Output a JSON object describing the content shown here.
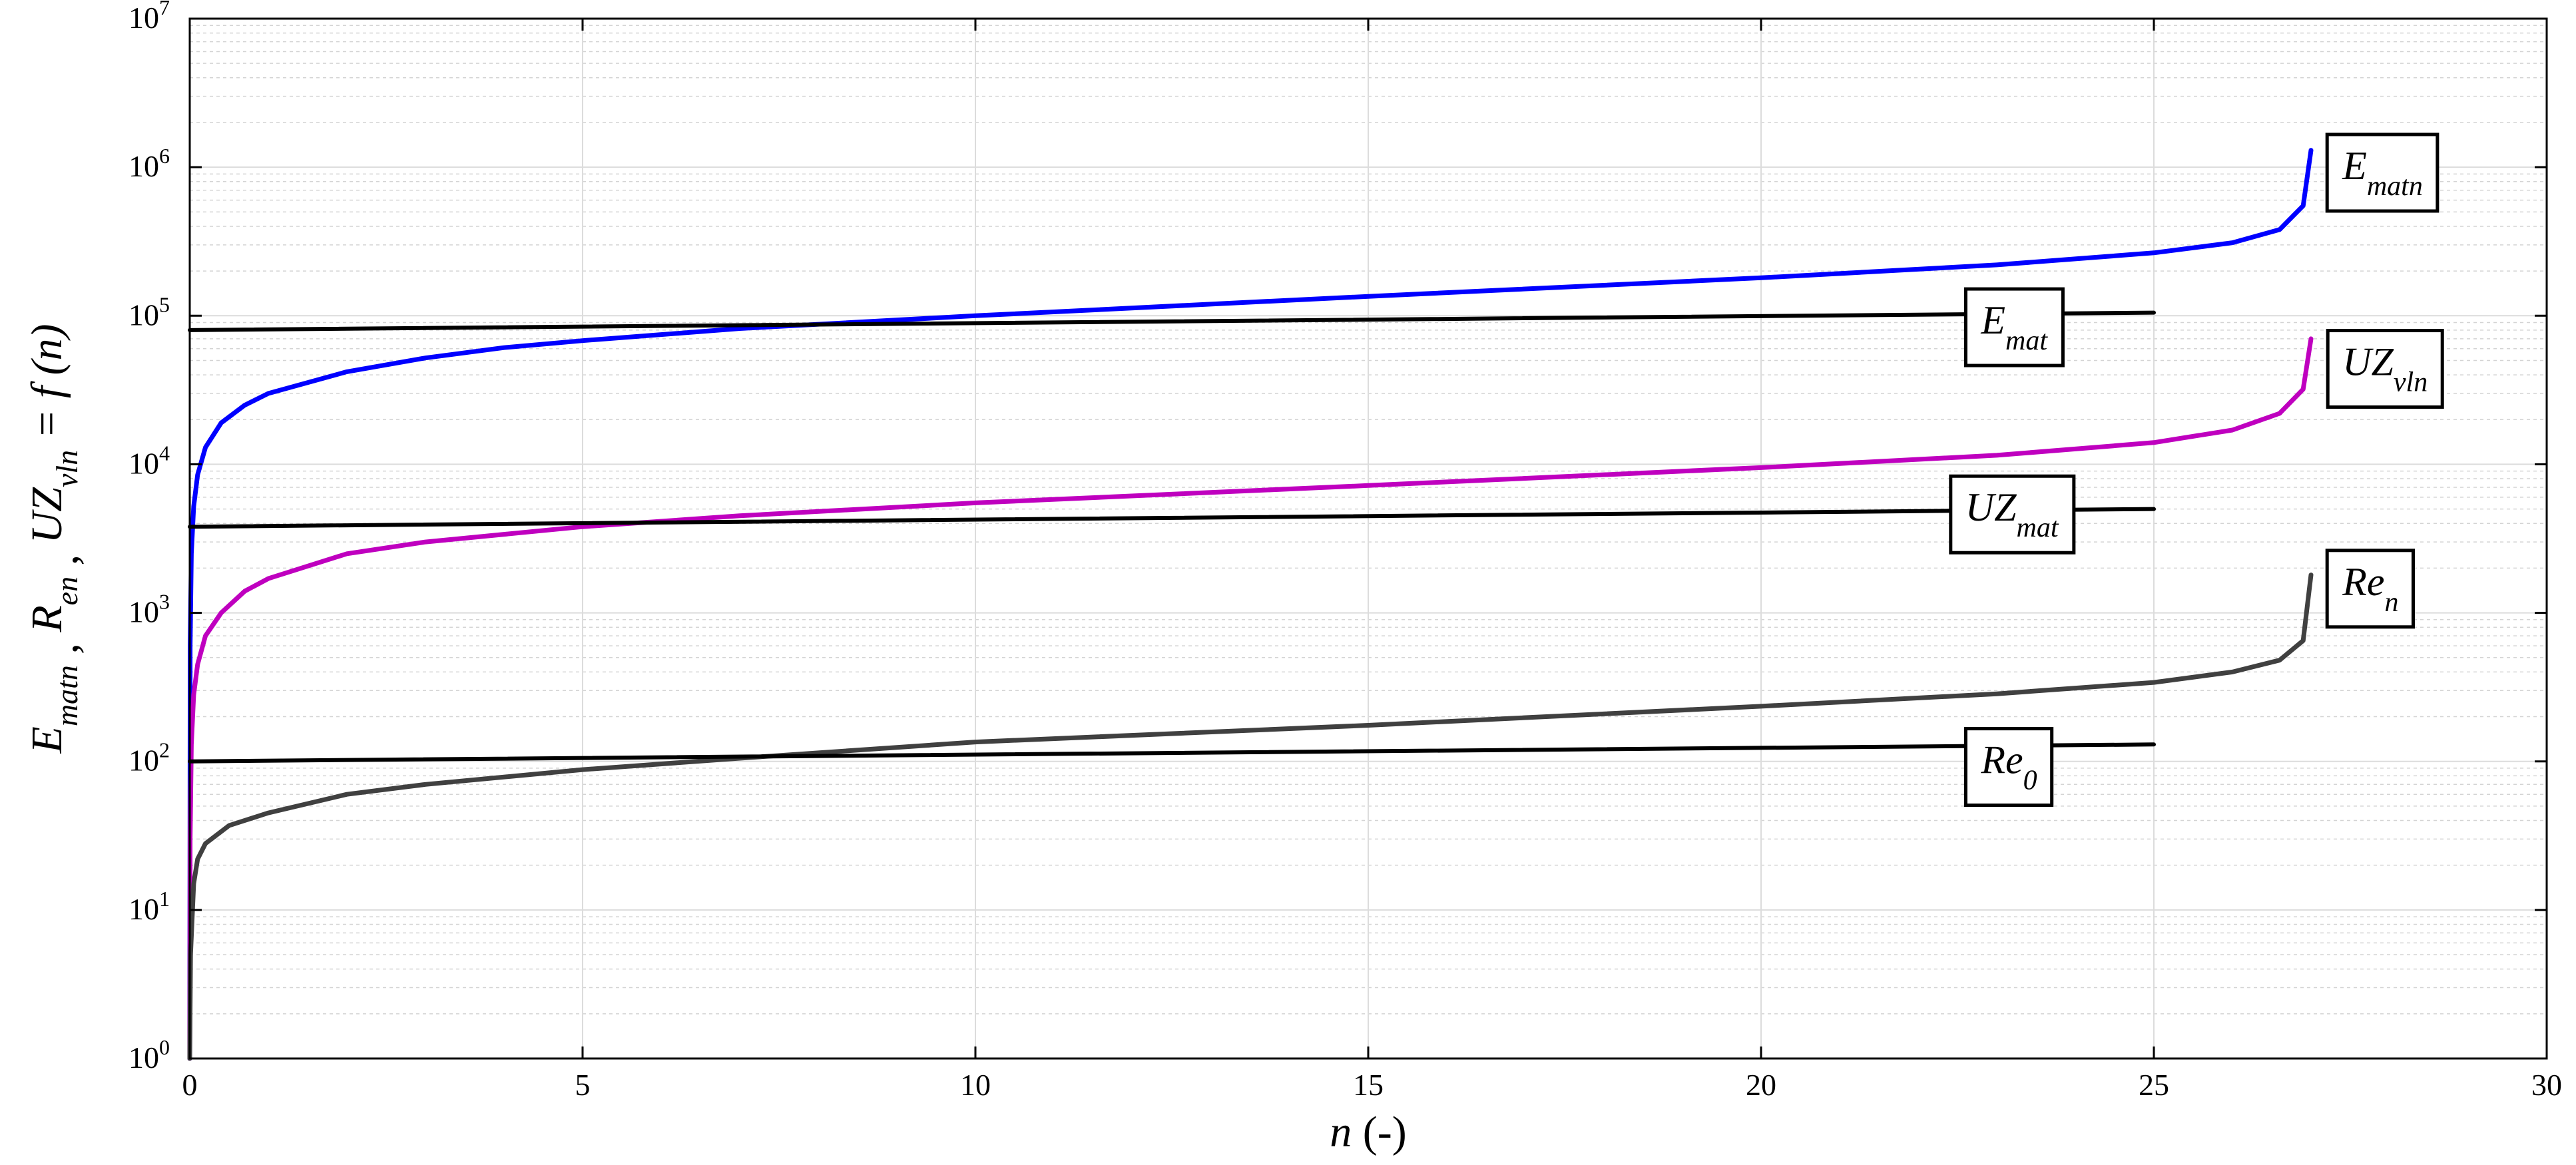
{
  "chart_data": {
    "type": "line",
    "xlabel": {
      "var": "n",
      "unit": "(-)"
    },
    "ylabel": {
      "parts": [
        {
          "base": "E",
          "sub": "matn"
        },
        {
          "base": "R",
          "sub": "en"
        },
        {
          "base": "UZ",
          "sub": "vln"
        }
      ],
      "suffix": "= f (n)"
    },
    "xlim": [
      0,
      30
    ],
    "xticks": [
      0,
      5,
      10,
      15,
      20,
      25,
      30
    ],
    "ylim": [
      1,
      10000000
    ],
    "yscale": "log",
    "yticks": [
      {
        "base": "10",
        "exp": "0"
      },
      {
        "base": "10",
        "exp": "1"
      },
      {
        "base": "10",
        "exp": "2"
      },
      {
        "base": "10",
        "exp": "3"
      },
      {
        "base": "10",
        "exp": "4"
      },
      {
        "base": "10",
        "exp": "5"
      },
      {
        "base": "10",
        "exp": "6"
      },
      {
        "base": "10",
        "exp": "7"
      }
    ],
    "grid": true,
    "minor_grid": true,
    "series": [
      {
        "label": {
          "base": "E",
          "sub": "matn"
        },
        "color": "#0000ff",
        "kind": "curve",
        "points": [
          [
            0,
            1
          ],
          [
            0.005,
            600
          ],
          [
            0.02,
            2500
          ],
          [
            0.05,
            5200
          ],
          [
            0.1,
            8500
          ],
          [
            0.2,
            13000
          ],
          [
            0.4,
            19000
          ],
          [
            0.7,
            25000
          ],
          [
            1,
            30000
          ],
          [
            2,
            42000
          ],
          [
            3,
            52000
          ],
          [
            4,
            61000
          ],
          [
            5,
            68000
          ],
          [
            7,
            82000
          ],
          [
            10,
            100000
          ],
          [
            15,
            135000
          ],
          [
            20,
            180000
          ],
          [
            23,
            220000
          ],
          [
            25,
            265000
          ],
          [
            26,
            310000
          ],
          [
            26.6,
            380000
          ],
          [
            26.9,
            550000
          ],
          [
            27,
            1300000
          ]
        ]
      },
      {
        "label": {
          "base": "E",
          "sub": "mat"
        },
        "color": "#000000",
        "kind": "line",
        "points": [
          [
            0,
            80000
          ],
          [
            25,
            105000
          ]
        ]
      },
      {
        "label": {
          "base": "UZ",
          "sub": "vln"
        },
        "color": "#bf00bf",
        "kind": "curve",
        "points": [
          [
            0,
            1
          ],
          [
            0.005,
            30
          ],
          [
            0.02,
            130
          ],
          [
            0.05,
            280
          ],
          [
            0.1,
            450
          ],
          [
            0.2,
            700
          ],
          [
            0.4,
            1000
          ],
          [
            0.7,
            1400
          ],
          [
            1,
            1700
          ],
          [
            2,
            2500
          ],
          [
            3,
            3000
          ],
          [
            5,
            3800
          ],
          [
            7,
            4500
          ],
          [
            10,
            5500
          ],
          [
            15,
            7200
          ],
          [
            20,
            9500
          ],
          [
            23,
            11500
          ],
          [
            25,
            14000
          ],
          [
            26,
            17000
          ],
          [
            26.6,
            22000
          ],
          [
            26.9,
            32000
          ],
          [
            27,
            70000
          ]
        ]
      },
      {
        "label": {
          "base": "UZ",
          "sub": "mat"
        },
        "color": "#000000",
        "kind": "line",
        "points": [
          [
            0,
            3800
          ],
          [
            25,
            5000
          ]
        ]
      },
      {
        "label": {
          "base": "Re",
          "sub": "n"
        },
        "color": "#404040",
        "kind": "curve",
        "points": [
          [
            0,
            1
          ],
          [
            0.01,
            5
          ],
          [
            0.05,
            15
          ],
          [
            0.1,
            22
          ],
          [
            0.2,
            28
          ],
          [
            0.5,
            37
          ],
          [
            1,
            45
          ],
          [
            2,
            60
          ],
          [
            3,
            70
          ],
          [
            5,
            88
          ],
          [
            7,
            105
          ],
          [
            10,
            135
          ],
          [
            15,
            175
          ],
          [
            20,
            235
          ],
          [
            23,
            285
          ],
          [
            25,
            340
          ],
          [
            26,
            400
          ],
          [
            26.6,
            480
          ],
          [
            26.9,
            650
          ],
          [
            27,
            1800
          ]
        ]
      },
      {
        "label": {
          "base": "Re",
          "sub": "0"
        },
        "color": "#000000",
        "kind": "line",
        "points": [
          [
            0,
            100
          ],
          [
            25,
            130
          ]
        ]
      }
    ],
    "annotations": [
      {
        "base": "E",
        "sub": "matn",
        "anchor": [
          27.4,
          5.92
        ]
      },
      {
        "base": "E",
        "sub": "mat",
        "anchor": [
          22.8,
          4.88
        ]
      },
      {
        "base": "UZ",
        "sub": "vln",
        "anchor": [
          27.4,
          4.6
        ]
      },
      {
        "base": "UZ",
        "sub": "mat",
        "anchor": [
          22.6,
          3.62
        ]
      },
      {
        "base": "Re",
        "sub": "n",
        "anchor": [
          27.4,
          3.12
        ]
      },
      {
        "base": "Re",
        "sub": "0",
        "anchor": [
          22.8,
          1.92
        ]
      }
    ]
  }
}
